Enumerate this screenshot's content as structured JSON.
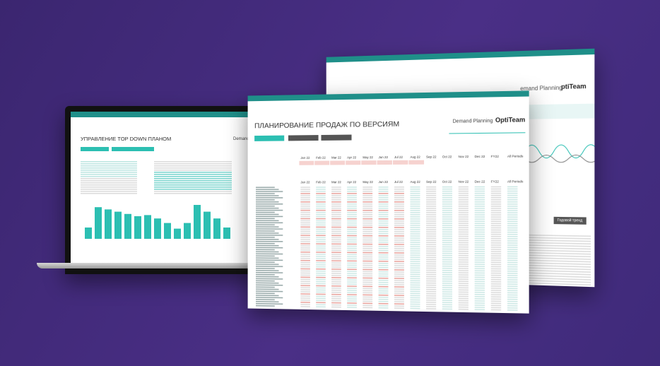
{
  "laptop": {
    "title": "УПРАВЛЕНИЕ TOP DOWN ПЛАНОМ",
    "product": "Demand Pl"
  },
  "front": {
    "title": "ПЛАНИРОВАНИЕ ПРОДАЖ ПО ВЕРСИЯМ",
    "product": "Demand Planning",
    "logo": "OptiTeam",
    "months": [
      "Jan 22",
      "Feb 22",
      "Mar 22",
      "Apr 22",
      "May 22",
      "Jun 22",
      "Jul 22",
      "Aug 22",
      "Sep 22",
      "Oct 22",
      "Nov 22",
      "Dec 22"
    ],
    "totals": [
      "FY22",
      "All Periods"
    ]
  },
  "back": {
    "product": "emand Planning",
    "logo": "ptiTeam",
    "button": "Годовой тренд"
  }
}
